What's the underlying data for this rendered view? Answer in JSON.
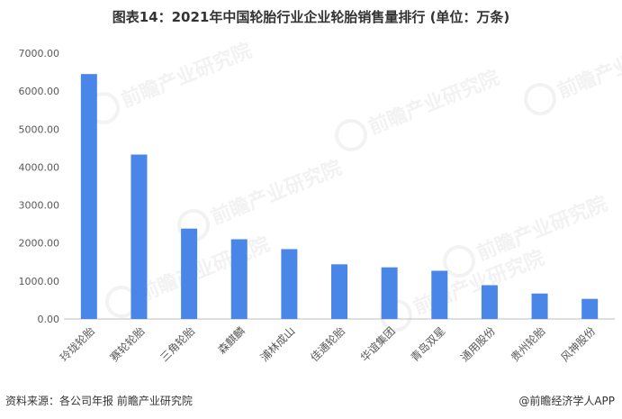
{
  "chart_data": {
    "type": "bar",
    "title": "图表14：2021年中国轮胎行业企业轮胎销售量排行 (单位：万条)",
    "categories": [
      "玲珑轮胎",
      "赛轮轮胎",
      "三角轮胎",
      "森麒麟",
      "浦林成山",
      "佳通轮胎",
      "华谊集团",
      "青岛双星",
      "通用股份",
      "贵州轮胎",
      "风神股份"
    ],
    "values": [
      6450,
      4330,
      2380,
      2100,
      1840,
      1440,
      1360,
      1270,
      890,
      670,
      530
    ],
    "ylim": [
      0,
      7000
    ],
    "y_ticks": [
      "0.00",
      "1000.00",
      "2000.00",
      "3000.00",
      "4000.00",
      "5000.00",
      "6000.00",
      "7000.00"
    ],
    "bar_color": "#4a86e8",
    "grid": false,
    "legend": "none"
  },
  "footer": {
    "source": "资料来源：各公司年报 前瞻产业研究院",
    "brand": "@前瞻经济学人APP"
  },
  "watermark": {
    "text": "前瞻产业研究院",
    "icon": "qianzhan-logo-icon"
  }
}
